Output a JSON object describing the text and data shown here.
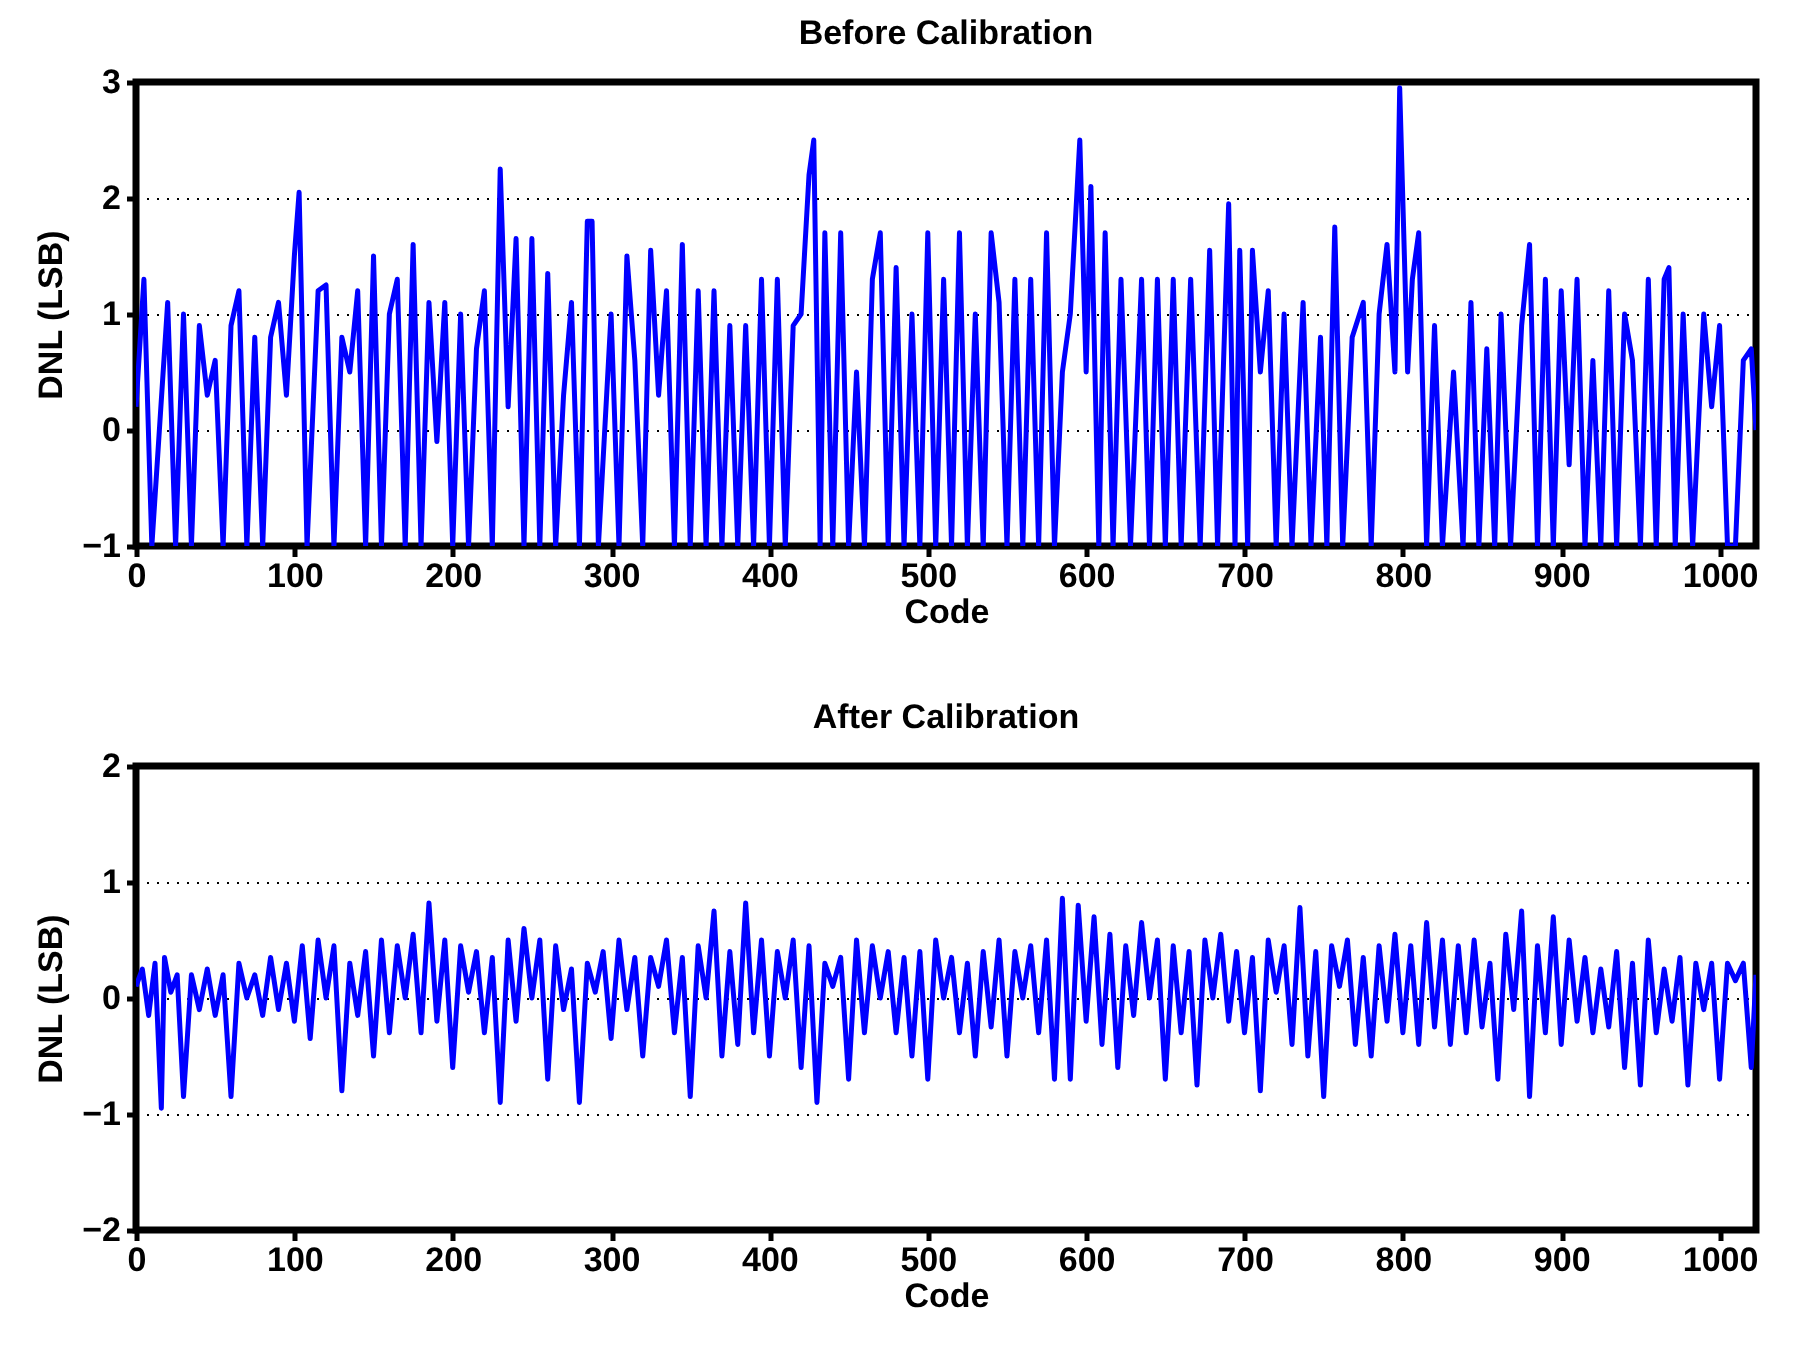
{
  "chart_data": [
    {
      "type": "line",
      "title": "Before Calibration",
      "xlabel": "Code",
      "ylabel": "DNL (LSB)",
      "xlim": [
        0,
        1023
      ],
      "ylim": [
        -1,
        3
      ],
      "xticks": [
        0,
        100,
        200,
        300,
        400,
        500,
        600,
        700,
        800,
        900,
        1000
      ],
      "yticks": [
        -1,
        0,
        1,
        2,
        3
      ],
      "grid": "y",
      "series": [
        {
          "color": "#0000ff",
          "x": [
            0,
            5,
            10,
            20,
            25,
            30,
            35,
            40,
            45,
            50,
            55,
            60,
            65,
            70,
            75,
            80,
            85,
            90,
            95,
            100,
            103,
            108,
            115,
            120,
            125,
            130,
            135,
            140,
            145,
            150,
            155,
            160,
            165,
            170,
            175,
            180,
            185,
            190,
            195,
            200,
            205,
            210,
            215,
            220,
            225,
            230,
            235,
            240,
            245,
            250,
            255,
            260,
            265,
            270,
            275,
            280,
            285,
            288,
            292,
            300,
            305,
            310,
            315,
            320,
            325,
            330,
            335,
            340,
            345,
            350,
            355,
            360,
            365,
            370,
            375,
            380,
            385,
            390,
            395,
            400,
            405,
            410,
            415,
            420,
            425,
            428,
            432,
            435,
            440,
            445,
            450,
            455,
            460,
            465,
            470,
            475,
            480,
            485,
            490,
            495,
            500,
            505,
            510,
            515,
            520,
            525,
            530,
            535,
            540,
            545,
            550,
            555,
            560,
            565,
            570,
            575,
            580,
            585,
            590,
            596,
            600,
            603,
            608,
            612,
            617,
            622,
            628,
            635,
            640,
            645,
            650,
            655,
            660,
            666,
            672,
            678,
            683,
            690,
            694,
            697,
            702,
            705,
            710,
            715,
            720,
            725,
            730,
            737,
            742,
            748,
            752,
            757,
            762,
            768,
            775,
            780,
            785,
            790,
            795,
            798,
            803,
            806,
            810,
            815,
            820,
            825,
            832,
            838,
            843,
            848,
            853,
            858,
            862,
            868,
            875,
            880,
            885,
            890,
            895,
            900,
            905,
            910,
            915,
            920,
            925,
            930,
            935,
            940,
            945,
            950,
            955,
            960,
            965,
            968,
            972,
            977,
            983,
            990,
            995,
            1000,
            1005,
            1010,
            1015,
            1020,
            1023
          ],
          "values": [
            0.2,
            1.3,
            -1,
            1.1,
            -1,
            1,
            -1,
            0.9,
            0.3,
            0.6,
            -1,
            0.9,
            1.2,
            -1,
            0.8,
            -1,
            0.8,
            1.1,
            0.3,
            1.5,
            2.05,
            -1,
            1.2,
            1.25,
            -1,
            0.8,
            0.5,
            1.2,
            -1,
            1.5,
            -1,
            1.0,
            1.3,
            -1,
            1.6,
            -1,
            1.1,
            -0.1,
            1.1,
            -1,
            1.0,
            -1,
            0.7,
            1.2,
            -1,
            2.25,
            0.2,
            1.65,
            -1,
            1.65,
            -1,
            1.35,
            -1,
            0.3,
            1.1,
            -1,
            1.8,
            1.8,
            -1,
            1.0,
            -1,
            1.5,
            0.6,
            -1,
            1.55,
            0.3,
            1.2,
            -1,
            1.6,
            -1,
            1.2,
            -1,
            1.2,
            -1,
            0.9,
            -1,
            0.9,
            -1,
            1.3,
            -1,
            1.3,
            -1,
            0.9,
            1.0,
            2.2,
            2.5,
            -1,
            1.7,
            -1,
            1.7,
            -1,
            0.5,
            -1,
            1.3,
            1.7,
            -1,
            1.4,
            -1,
            1.0,
            -1,
            1.7,
            -1,
            1.3,
            -1,
            1.7,
            -1,
            1.0,
            -1,
            1.7,
            1.1,
            -1,
            1.3,
            -1,
            1.3,
            -1,
            1.7,
            -1,
            0.5,
            1.0,
            2.5,
            0.5,
            2.1,
            -1,
            1.7,
            -1,
            1.3,
            -1,
            1.3,
            -1,
            1.3,
            -1,
            1.3,
            -1,
            1.3,
            -1,
            1.55,
            -1,
            1.95,
            -1,
            1.55,
            -1,
            1.55,
            0.5,
            1.2,
            -1,
            1.0,
            -1,
            1.1,
            -1,
            0.8,
            -1,
            1.75,
            -1,
            0.8,
            1.1,
            -1,
            1.0,
            1.6,
            0.5,
            2.95,
            0.5,
            1.3,
            1.7,
            -1,
            0.9,
            -1,
            0.5,
            -1,
            1.1,
            -1,
            0.7,
            -1,
            1.0,
            -1,
            0.9,
            1.6,
            -1,
            1.3,
            -1,
            1.2,
            -0.3,
            1.3,
            -1,
            0.6,
            -1,
            1.2,
            -1,
            1.0,
            0.6,
            -1,
            1.3,
            -1,
            1.3,
            1.4,
            -1,
            1.0,
            -1,
            1.0,
            0.2,
            0.9,
            -1,
            -1,
            0.6,
            0.7,
            0.0
          ]
        }
      ]
    },
    {
      "type": "line",
      "title": "After Calibration",
      "xlabel": "Code",
      "ylabel": "DNL (LSB)",
      "xlim": [
        0,
        1023
      ],
      "ylim": [
        -2,
        2
      ],
      "xticks": [
        0,
        100,
        200,
        300,
        400,
        500,
        600,
        700,
        800,
        900,
        1000
      ],
      "yticks": [
        -2,
        -1,
        0,
        1,
        2
      ],
      "grid": "y",
      "series": [
        {
          "color": "#0000ff",
          "x": [
            0,
            4,
            8,
            12,
            16,
            18,
            22,
            26,
            30,
            35,
            40,
            45,
            50,
            55,
            60,
            65,
            70,
            75,
            80,
            85,
            90,
            95,
            100,
            105,
            110,
            115,
            120,
            125,
            130,
            135,
            140,
            145,
            150,
            155,
            160,
            165,
            170,
            175,
            180,
            185,
            190,
            195,
            200,
            205,
            210,
            215,
            220,
            225,
            230,
            235,
            240,
            245,
            250,
            255,
            260,
            265,
            270,
            275,
            280,
            285,
            290,
            295,
            300,
            305,
            310,
            315,
            320,
            325,
            330,
            335,
            340,
            345,
            350,
            355,
            360,
            365,
            370,
            375,
            380,
            385,
            390,
            395,
            400,
            405,
            410,
            415,
            420,
            425,
            430,
            435,
            440,
            445,
            450,
            455,
            460,
            465,
            470,
            475,
            480,
            485,
            490,
            495,
            500,
            505,
            510,
            515,
            520,
            525,
            530,
            535,
            540,
            545,
            550,
            555,
            560,
            565,
            570,
            575,
            580,
            585,
            590,
            595,
            600,
            605,
            610,
            615,
            620,
            625,
            630,
            635,
            640,
            645,
            650,
            655,
            660,
            665,
            670,
            675,
            680,
            685,
            690,
            695,
            700,
            705,
            710,
            715,
            720,
            725,
            730,
            735,
            740,
            745,
            750,
            755,
            760,
            765,
            770,
            775,
            780,
            785,
            790,
            795,
            800,
            805,
            810,
            815,
            820,
            825,
            830,
            835,
            840,
            845,
            850,
            855,
            860,
            865,
            870,
            875,
            880,
            885,
            890,
            895,
            900,
            905,
            910,
            915,
            920,
            925,
            930,
            935,
            940,
            945,
            950,
            955,
            960,
            965,
            970,
            975,
            980,
            985,
            990,
            995,
            1000,
            1005,
            1010,
            1015,
            1020,
            1023
          ],
          "values": [
            0.1,
            0.25,
            -0.15,
            0.3,
            -0.95,
            0.35,
            0.05,
            0.2,
            -0.85,
            0.2,
            -0.1,
            0.25,
            -0.15,
            0.2,
            -0.85,
            0.3,
            0.0,
            0.2,
            -0.15,
            0.35,
            -0.1,
            0.3,
            -0.2,
            0.45,
            -0.35,
            0.5,
            0.0,
            0.45,
            -0.8,
            0.3,
            -0.15,
            0.4,
            -0.5,
            0.5,
            -0.3,
            0.45,
            0.0,
            0.55,
            -0.3,
            0.82,
            -0.2,
            0.5,
            -0.6,
            0.45,
            0.05,
            0.4,
            -0.3,
            0.35,
            -0.9,
            0.5,
            -0.2,
            0.6,
            0.0,
            0.5,
            -0.7,
            0.45,
            -0.1,
            0.25,
            -0.9,
            0.3,
            0.05,
            0.4,
            -0.35,
            0.5,
            -0.1,
            0.35,
            -0.5,
            0.35,
            0.1,
            0.5,
            -0.3,
            0.35,
            -0.85,
            0.45,
            0.0,
            0.75,
            -0.5,
            0.4,
            -0.4,
            0.82,
            -0.3,
            0.5,
            -0.5,
            0.4,
            0.0,
            0.5,
            -0.6,
            0.45,
            -0.9,
            0.3,
            0.1,
            0.35,
            -0.7,
            0.5,
            -0.3,
            0.45,
            0.0,
            0.4,
            -0.3,
            0.35,
            -0.5,
            0.4,
            -0.7,
            0.5,
            0.0,
            0.35,
            -0.3,
            0.3,
            -0.5,
            0.4,
            -0.25,
            0.5,
            -0.5,
            0.4,
            0.0,
            0.45,
            -0.3,
            0.5,
            -0.7,
            0.86,
            -0.7,
            0.8,
            -0.2,
            0.7,
            -0.4,
            0.55,
            -0.6,
            0.45,
            -0.15,
            0.65,
            0.0,
            0.5,
            -0.7,
            0.45,
            -0.3,
            0.4,
            -0.75,
            0.5,
            0.0,
            0.55,
            -0.2,
            0.4,
            -0.3,
            0.35,
            -0.8,
            0.5,
            0.05,
            0.45,
            -0.4,
            0.78,
            -0.5,
            0.4,
            -0.85,
            0.45,
            0.1,
            0.5,
            -0.4,
            0.35,
            -0.5,
            0.45,
            -0.2,
            0.55,
            -0.3,
            0.45,
            -0.4,
            0.65,
            -0.25,
            0.5,
            -0.4,
            0.45,
            -0.3,
            0.5,
            -0.25,
            0.3,
            -0.7,
            0.55,
            -0.1,
            0.75,
            -0.85,
            0.45,
            -0.3,
            0.7,
            -0.4,
            0.5,
            -0.2,
            0.35,
            -0.3,
            0.25,
            -0.25,
            0.4,
            -0.6,
            0.3,
            -0.75,
            0.5,
            -0.3,
            0.25,
            -0.2,
            0.35,
            -0.75,
            0.3,
            -0.1,
            0.3,
            -0.7,
            0.3,
            0.15,
            0.3,
            -0.6,
            0.2
          ]
        }
      ]
    }
  ]
}
